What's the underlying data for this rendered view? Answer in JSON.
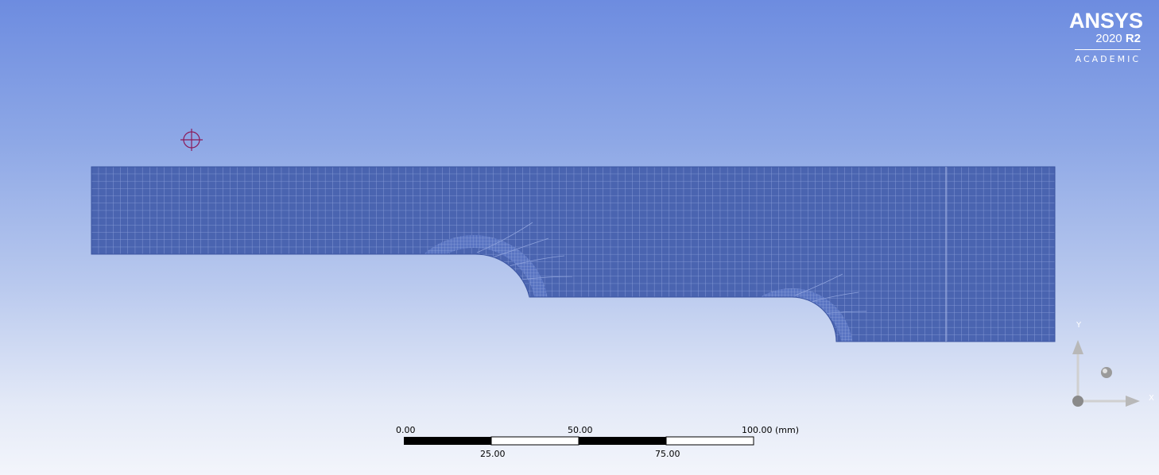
{
  "logo": {
    "brand": "ANSYS",
    "version": "2020",
    "release": "R2",
    "edition": "ACADEMIC"
  },
  "scale_bar": {
    "top_labels": [
      "0.00",
      "50.00",
      "100.00 (mm)"
    ],
    "bottom_labels": [
      "25.00",
      "75.00"
    ]
  },
  "triad": {
    "y_label": "Y",
    "x_label": "X"
  },
  "colors": {
    "mesh_fill": "#4a64b0",
    "mesh_lines": "#8ea2dc",
    "pivot": "#8b1a5a"
  },
  "icons": {
    "rotation_center": "crosshair-icon",
    "triad": "axis-triad-icon"
  }
}
